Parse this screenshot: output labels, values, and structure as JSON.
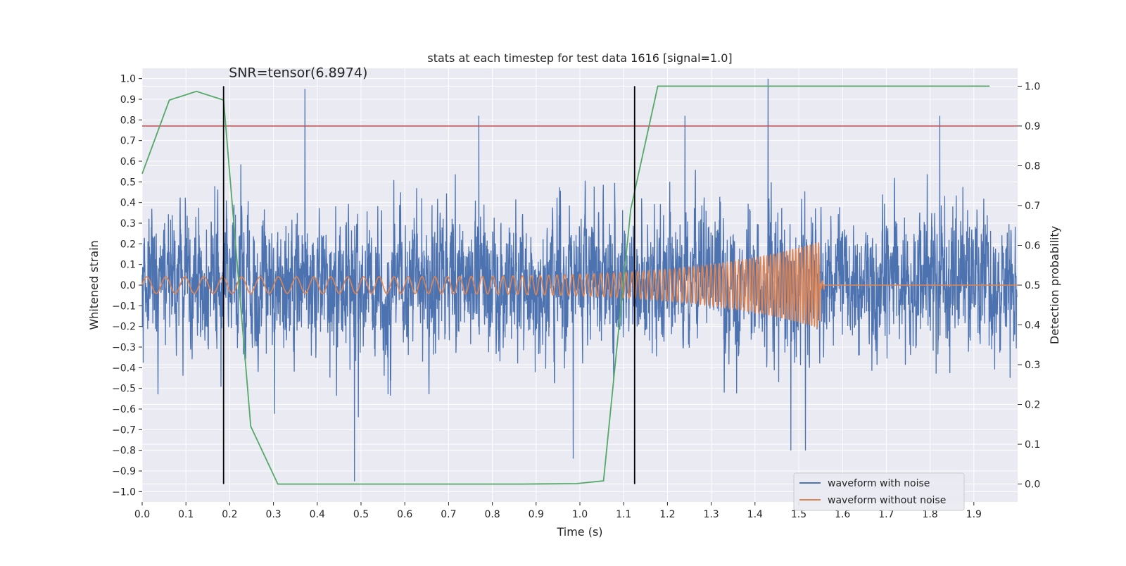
{
  "chart_data": {
    "type": "line",
    "title": "stats at each timestep for test data 1616 [signal=1.0]",
    "xlabel": "Time (s)",
    "ylabel": "Whitened strain",
    "y2label": "Detection probability",
    "xlim": [
      0.0,
      2.0
    ],
    "ylim": [
      -1.05,
      1.05
    ],
    "y2lim": [
      -0.045,
      1.045
    ],
    "x_ticks": [
      0.0,
      0.1,
      0.2,
      0.3,
      0.4,
      0.5,
      0.6,
      0.7,
      0.8,
      0.9,
      1.0,
      1.1,
      1.2,
      1.3,
      1.4,
      1.5,
      1.6,
      1.7,
      1.8,
      1.9
    ],
    "x_tick_labels": [
      "0.0",
      "0.1",
      "0.2",
      "0.3",
      "0.4",
      "0.5",
      "0.6",
      "0.7",
      "0.8",
      "0.9",
      "1.0",
      "1.1",
      "1.2",
      "1.3",
      "1.4",
      "1.5",
      "1.6",
      "1.7",
      "1.8",
      "1.9"
    ],
    "y_ticks": [
      1.0,
      0.9,
      0.8,
      0.7,
      0.6,
      0.5,
      0.4,
      0.3,
      0.2,
      0.1,
      0.0,
      -0.1,
      -0.2,
      -0.3,
      -0.4,
      -0.5,
      -0.6,
      -0.7,
      -0.8,
      -0.9,
      -1.0
    ],
    "y_tick_labels": [
      "1.0",
      "0.9",
      "0.8",
      "0.7",
      "0.6",
      "0.5",
      "0.4",
      "0.3",
      "0.2",
      "0.1",
      "0.0",
      "−0.1",
      "−0.2",
      "−0.3",
      "−0.4",
      "−0.5",
      "−0.6",
      "−0.7",
      "−0.8",
      "−0.9",
      "−1.0"
    ],
    "y2_ticks": [
      1.0,
      0.9,
      0.8,
      0.7,
      0.6,
      0.5,
      0.4,
      0.3,
      0.2,
      0.1,
      0.0
    ],
    "y2_tick_labels": [
      "1.0",
      "0.9",
      "0.8",
      "0.7",
      "0.6",
      "0.5",
      "0.4",
      "0.3",
      "0.2",
      "0.1",
      "0.0"
    ],
    "grid": true,
    "legend_position": "lower-right",
    "annotation": "SNR=tensor(6.8974)",
    "series": [
      {
        "name": "waveform with noise",
        "color": "#4c72b0",
        "kind": "noise",
        "n_points": 4096,
        "dt": 0.000488,
        "std": 0.27,
        "notable_peaks": [
          {
            "x": 0.372,
            "y": 0.95
          },
          {
            "x": 0.485,
            "y": -0.95
          },
          {
            "x": 1.43,
            "y": 1.0
          },
          {
            "x": 1.24,
            "y": 0.82
          },
          {
            "x": 1.822,
            "y": 0.82
          },
          {
            "x": 0.769,
            "y": 0.82
          },
          {
            "x": 1.482,
            "y": -0.8
          },
          {
            "x": 1.515,
            "y": -0.8
          },
          {
            "x": 0.985,
            "y": -0.84
          }
        ]
      },
      {
        "name": "waveform without noise",
        "color": "#dd8452",
        "kind": "chirp",
        "t_start": 0.0,
        "t_end": 1.548,
        "freq_start": 23,
        "freq_end": 160,
        "amp_start": 0.04,
        "amp_end": 0.21
      }
    ],
    "detection_probability": {
      "color": "#55a868",
      "x": [
        0.0,
        0.062,
        0.124,
        0.186,
        0.248,
        0.31,
        0.372,
        0.496,
        0.62,
        0.744,
        0.868,
        0.992,
        1.054,
        1.116,
        1.178,
        1.24,
        1.488,
        1.612,
        1.736,
        1.86,
        1.936
      ],
      "y": [
        0.78,
        0.965,
        0.987,
        0.965,
        0.145,
        0.0,
        0.0,
        0.0,
        0.0,
        0.0,
        0.0,
        0.001,
        0.008,
        0.69,
        1.0,
        1.0,
        1.0,
        1.0,
        1.0,
        1.0,
        1.0
      ]
    },
    "threshold": {
      "y2": 0.9,
      "color": "#c44e52"
    },
    "vlines": [
      {
        "x": 0.186,
        "color": "#000000"
      },
      {
        "x": 1.125,
        "color": "#000000"
      }
    ]
  }
}
